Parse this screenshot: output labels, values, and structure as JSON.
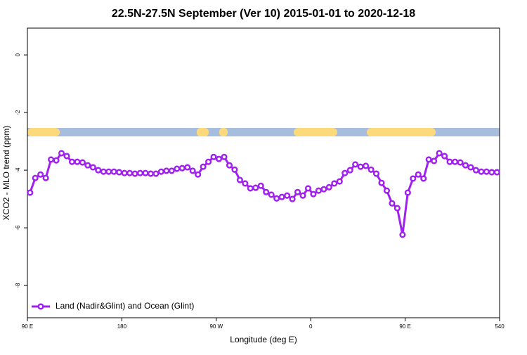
{
  "chart_data": {
    "type": "line",
    "title": "22.5N-27.5N September (Ver 10)   2015-01-01 to 2020-12-18",
    "x_label": "Longitude (deg E)",
    "y_label": "XCO2 - MLO trend (ppm)",
    "xlim": [
      90,
      540
    ],
    "ylim": [
      -9.12,
      0.93
    ],
    "xticks": [
      {
        "value": 90,
        "label": "90 E"
      },
      180,
      {
        "value": 270,
        "label": "90 W"
      },
      {
        "value": 360,
        "label": "0"
      },
      {
        "value": 450,
        "label": "90 E"
      },
      540
    ],
    "yticks": [
      0,
      -2,
      -4,
      -6,
      -8
    ],
    "legend": "bottom-left",
    "series": [
      {
        "name": "Land (Nadir&Glint) and Ocean (Glint)",
        "color": "#a020f0",
        "x": [
          92.5,
          97.5,
          102.5,
          107.5,
          112.5,
          117.5,
          122.5,
          127.5,
          132.5,
          137.5,
          142.5,
          147.5,
          152.5,
          157.5,
          162.5,
          167.5,
          172.5,
          177.5,
          182.5,
          187.5,
          192.5,
          197.5,
          202.5,
          207.5,
          212.5,
          217.5,
          222.5,
          227.5,
          232.5,
          237.5,
          242.5,
          247.5,
          252.5,
          257.5,
          262.5,
          267.5,
          272.5,
          277.5,
          282.5,
          287.5,
          292.5,
          297.5,
          302.5,
          307.5,
          312.5,
          317.5,
          322.5,
          327.5,
          332.5,
          337.5,
          342.5,
          347.5,
          352.5,
          357.5,
          362.5,
          367.5,
          372.5,
          377.5,
          382.5,
          387.5,
          392.5,
          397.5,
          402.5,
          407.5,
          412.5,
          417.5,
          422.5,
          427.5,
          432.5,
          437.5,
          442.5,
          447.5,
          452.5,
          457.5,
          462.5,
          467.5,
          472.5,
          477.5,
          482.5,
          487.5,
          492.5,
          497.5,
          502.5,
          507.5,
          512.5,
          517.5,
          522.5,
          527.5,
          532.5,
          537.5
        ],
        "values": [
          -4.78,
          -4.27,
          -4.15,
          -4.27,
          -3.63,
          -3.66,
          -3.41,
          -3.51,
          -3.71,
          -3.71,
          -3.73,
          -3.83,
          -3.9,
          -4.0,
          -4.05,
          -4.05,
          -4.05,
          -4.07,
          -4.1,
          -4.1,
          -4.12,
          -4.1,
          -4.1,
          -4.12,
          -4.12,
          -4.05,
          -4.02,
          -4.02,
          -3.95,
          -3.93,
          -3.9,
          -4.02,
          -4.15,
          -3.88,
          -3.71,
          -3.54,
          -3.61,
          -3.54,
          -3.83,
          -3.98,
          -4.34,
          -4.46,
          -4.63,
          -4.61,
          -4.54,
          -4.76,
          -4.85,
          -4.98,
          -4.93,
          -4.88,
          -5.0,
          -4.76,
          -4.88,
          -4.63,
          -4.83,
          -4.71,
          -4.66,
          -4.59,
          -4.46,
          -4.39,
          -4.1,
          -4.0,
          -3.8,
          -3.88,
          -3.85,
          -3.98,
          -4.12,
          -4.44,
          -4.71,
          -5.15,
          -5.32,
          -6.24,
          -4.78,
          -4.29,
          -4.15,
          -4.29,
          -3.63,
          -3.68,
          -3.41,
          -3.51,
          -3.71,
          -3.71,
          -3.73,
          -3.83,
          -3.9,
          -4.0,
          -4.05,
          -4.05,
          -4.07,
          -4.07
        ]
      }
    ]
  }
}
